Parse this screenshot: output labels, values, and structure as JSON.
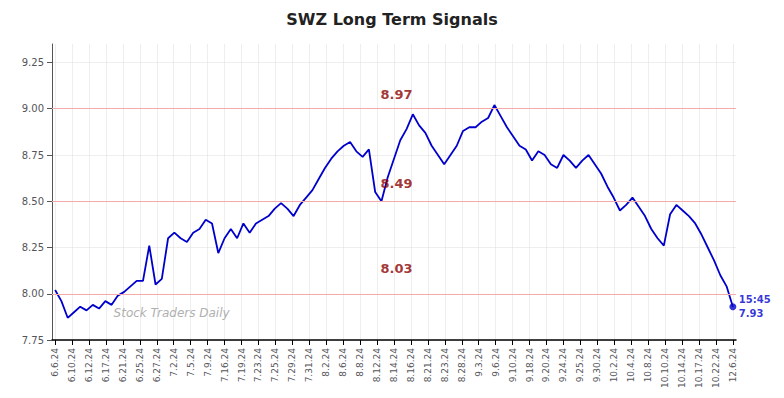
{
  "chart_data": {
    "type": "line",
    "title": "SWZ Long Term Signals",
    "color": "#0000cc",
    "grid": true,
    "x": [
      0,
      1,
      2,
      3,
      4,
      5,
      6,
      7,
      8,
      9,
      10,
      11,
      12,
      13,
      14,
      15,
      16,
      17,
      18,
      19,
      20,
      21,
      22,
      23,
      24,
      25,
      26,
      27,
      28,
      29,
      30,
      31,
      32,
      33,
      34,
      35,
      36,
      37,
      38,
      39,
      40,
      41,
      42,
      43,
      44,
      45,
      46,
      47,
      48,
      49,
      50,
      51,
      52,
      53,
      54,
      55,
      56,
      57,
      58,
      59,
      60,
      61,
      62,
      63,
      64,
      65,
      66,
      67,
      68,
      69,
      70,
      71,
      72,
      73,
      74,
      75,
      76,
      77,
      78,
      79,
      80,
      81,
      82,
      83,
      84,
      85,
      86,
      87,
      88,
      89,
      90,
      91,
      92,
      93,
      94,
      95,
      96,
      97,
      98,
      99,
      100,
      101,
      102,
      103,
      104,
      105,
      106,
      107,
      108
    ],
    "values": [
      8.02,
      7.96,
      7.87,
      7.9,
      7.93,
      7.91,
      7.94,
      7.92,
      7.96,
      7.94,
      7.99,
      8.01,
      8.04,
      8.07,
      8.07,
      8.26,
      8.05,
      8.08,
      8.3,
      8.33,
      8.3,
      8.28,
      8.33,
      8.35,
      8.4,
      8.38,
      8.22,
      8.3,
      8.35,
      8.3,
      8.38,
      8.33,
      8.38,
      8.4,
      8.42,
      8.46,
      8.49,
      8.46,
      8.42,
      8.48,
      8.52,
      8.56,
      8.62,
      8.68,
      8.73,
      8.77,
      8.8,
      8.82,
      8.77,
      8.74,
      8.78,
      8.55,
      8.5,
      8.63,
      8.73,
      8.83,
      8.89,
      8.97,
      8.91,
      8.87,
      8.8,
      8.75,
      8.7,
      8.75,
      8.8,
      8.88,
      8.9,
      8.9,
      8.93,
      8.95,
      9.02,
      8.96,
      8.9,
      8.85,
      8.8,
      8.78,
      8.72,
      8.77,
      8.75,
      8.7,
      8.68,
      8.75,
      8.72,
      8.68,
      8.72,
      8.75,
      8.7,
      8.65,
      8.58,
      8.52,
      8.45,
      8.48,
      8.52,
      8.47,
      8.42,
      8.35,
      8.3,
      8.26,
      8.43,
      8.48,
      8.45,
      8.42,
      8.38,
      8.32,
      8.25,
      8.18,
      8.1,
      8.04,
      7.93
    ],
    "xlim": [
      -0.5,
      108.5
    ],
    "xticks": [
      {
        "value": 0,
        "label": "6.6.24"
      },
      {
        "value": 2.7,
        "label": "6.10.24"
      },
      {
        "value": 5.4,
        "label": "6.12.24"
      },
      {
        "value": 8.1,
        "label": "6.17.24"
      },
      {
        "value": 10.8,
        "label": "6.21.24"
      },
      {
        "value": 13.5,
        "label": "6.25.24"
      },
      {
        "value": 16.2,
        "label": "6.27.24"
      },
      {
        "value": 18.9,
        "label": "7.2.24"
      },
      {
        "value": 21.6,
        "label": "7.5.24"
      },
      {
        "value": 24.3,
        "label": "7.9.24"
      },
      {
        "value": 27,
        "label": "7.16.24"
      },
      {
        "value": 29.7,
        "label": "7.19.24"
      },
      {
        "value": 32.4,
        "label": "7.23.24"
      },
      {
        "value": 35.1,
        "label": "7.25.24"
      },
      {
        "value": 37.8,
        "label": "7.29.24"
      },
      {
        "value": 40.5,
        "label": "7.31.24"
      },
      {
        "value": 43.2,
        "label": "8.2.24"
      },
      {
        "value": 45.9,
        "label": "8.6.24"
      },
      {
        "value": 48.6,
        "label": "8.8.24"
      },
      {
        "value": 51.3,
        "label": "8.12.24"
      },
      {
        "value": 54,
        "label": "8.14.24"
      },
      {
        "value": 56.7,
        "label": "8.16.24"
      },
      {
        "value": 59.4,
        "label": "8.21.24"
      },
      {
        "value": 62.1,
        "label": "8.23.24"
      },
      {
        "value": 64.8,
        "label": "8.28.24"
      },
      {
        "value": 67.5,
        "label": "9.3.24"
      },
      {
        "value": 70.2,
        "label": "9.6.24"
      },
      {
        "value": 72.9,
        "label": "9.10.24"
      },
      {
        "value": 75.6,
        "label": "9.18.24"
      },
      {
        "value": 78.3,
        "label": "9.20.24"
      },
      {
        "value": 81,
        "label": "9.24.24"
      },
      {
        "value": 83.7,
        "label": "9.25.24"
      },
      {
        "value": 86.4,
        "label": "9.30.24"
      },
      {
        "value": 89.1,
        "label": "10.2.24"
      },
      {
        "value": 91.8,
        "label": "10.4.24"
      },
      {
        "value": 94.5,
        "label": "10.8.24"
      },
      {
        "value": 97.2,
        "label": "10.10.24"
      },
      {
        "value": 99.9,
        "label": "10.14.24"
      },
      {
        "value": 102.6,
        "label": "10.17.24"
      },
      {
        "value": 105.3,
        "label": "10.22.24"
      },
      {
        "value": 108,
        "label": "12.6.24"
      }
    ],
    "ylim": [
      7.75,
      9.35
    ],
    "yticks": [
      7.75,
      {
        "value": 8.0,
        "label": "8.00"
      },
      8.25,
      {
        "value": 8.5,
        "label": "8.50"
      },
      8.75,
      {
        "value": 9.0,
        "label": "9.00"
      },
      9.25
    ],
    "hlines": {
      "values": [
        9.0,
        8.5,
        8.0
      ],
      "color": "#f4aaaa"
    },
    "annotations": [
      {
        "text": "8.97",
        "x": 51.84,
        "y": 9.04,
        "color": "#8b0000"
      },
      {
        "text": "8.49",
        "x": 51.84,
        "y": 8.56,
        "color": "#8b0000"
      },
      {
        "text": "8.03",
        "x": 51.84,
        "y": 8.1,
        "color": "#8b0000"
      }
    ],
    "end_labels": [
      "15:45",
      "7.93"
    ],
    "watermark": {
      "text": "Stock Traders Daily",
      "color": "#b0b0b0"
    }
  }
}
